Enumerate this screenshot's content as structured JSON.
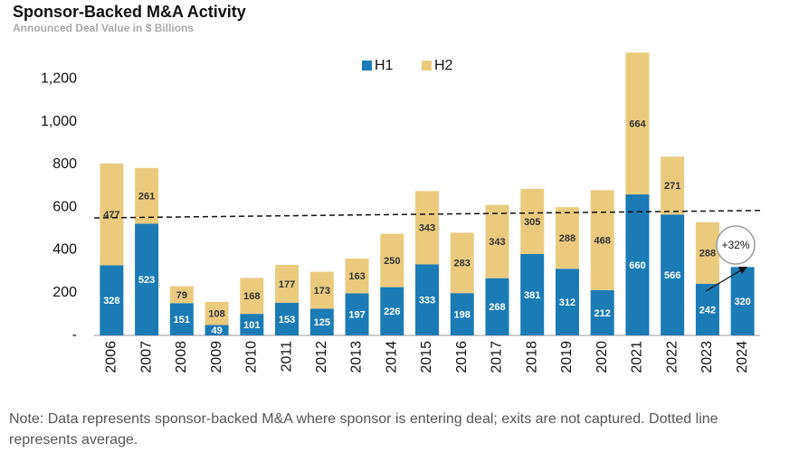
{
  "chart_data": {
    "type": "stacked_bar",
    "title": "Sponsor-Backed M&A Activity",
    "subtitle": "Announced Deal Value in $ Billions",
    "categories": [
      "2006",
      "2007",
      "2008",
      "2009",
      "2010",
      "2011",
      "2012",
      "2013",
      "2014",
      "2015",
      "2016",
      "2017",
      "2018",
      "2019",
      "2020",
      "2021",
      "2022",
      "2023",
      "2024"
    ],
    "series": [
      {
        "name": "H1",
        "color": "#1b7bb5",
        "label_color": "#ffffff",
        "values": [
          328,
          523,
          151,
          49,
          101,
          153,
          125,
          197,
          226,
          333,
          198,
          268,
          381,
          312,
          212,
          660,
          566,
          242,
          320
        ]
      },
      {
        "name": "H2",
        "color": "#eacb7e",
        "label_color": "#333333",
        "values": [
          477,
          261,
          79,
          108,
          168,
          177,
          173,
          163,
          250,
          343,
          283,
          343,
          305,
          288,
          468,
          664,
          271,
          288,
          null
        ]
      }
    ],
    "ylim": [
      0,
      1350
    ],
    "yticks": [
      {
        "value": 0,
        "label": "-"
      },
      200,
      400,
      600,
      800,
      {
        "value": 1000,
        "label": "1,000"
      },
      {
        "value": 1200,
        "label": "1,200"
      }
    ],
    "average_line": [
      550,
      585
    ],
    "annotation": "+32%",
    "note": "Note: Data represents sponsor-backed M&A where sponsor is entering deal; exits are not captured. Dotted line represents average."
  }
}
